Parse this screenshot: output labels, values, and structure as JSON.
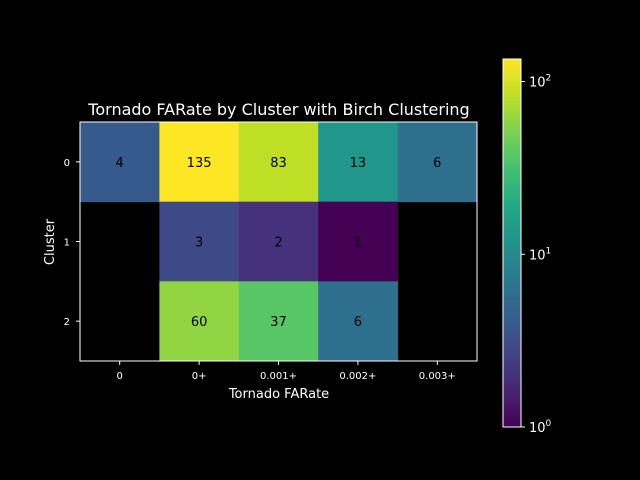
{
  "chart_data": {
    "type": "heatmap",
    "title": "Tornado FARate by Cluster with Birch Clustering",
    "xlabel": "Tornado FARate",
    "ylabel": "Cluster",
    "x_categories": [
      "0",
      "0+",
      "0.001+",
      "0.002+",
      "0.003+"
    ],
    "y_categories": [
      "0",
      "1",
      "2"
    ],
    "values": [
      [
        4,
        135,
        83,
        13,
        6
      ],
      [
        null,
        3,
        2,
        1,
        null
      ],
      [
        null,
        60,
        37,
        6,
        null
      ]
    ],
    "color_scale": "log",
    "colormap": "viridis",
    "vmin": 1,
    "vmax": 135,
    "colorbar": {
      "ticks": [
        {
          "value": 1,
          "base": "10",
          "exp": "0"
        },
        {
          "value": 10,
          "base": "10",
          "exp": "1"
        },
        {
          "value": 100,
          "base": "10",
          "exp": "2"
        }
      ]
    },
    "background": "#000000",
    "text_color": "#ffffff"
  }
}
